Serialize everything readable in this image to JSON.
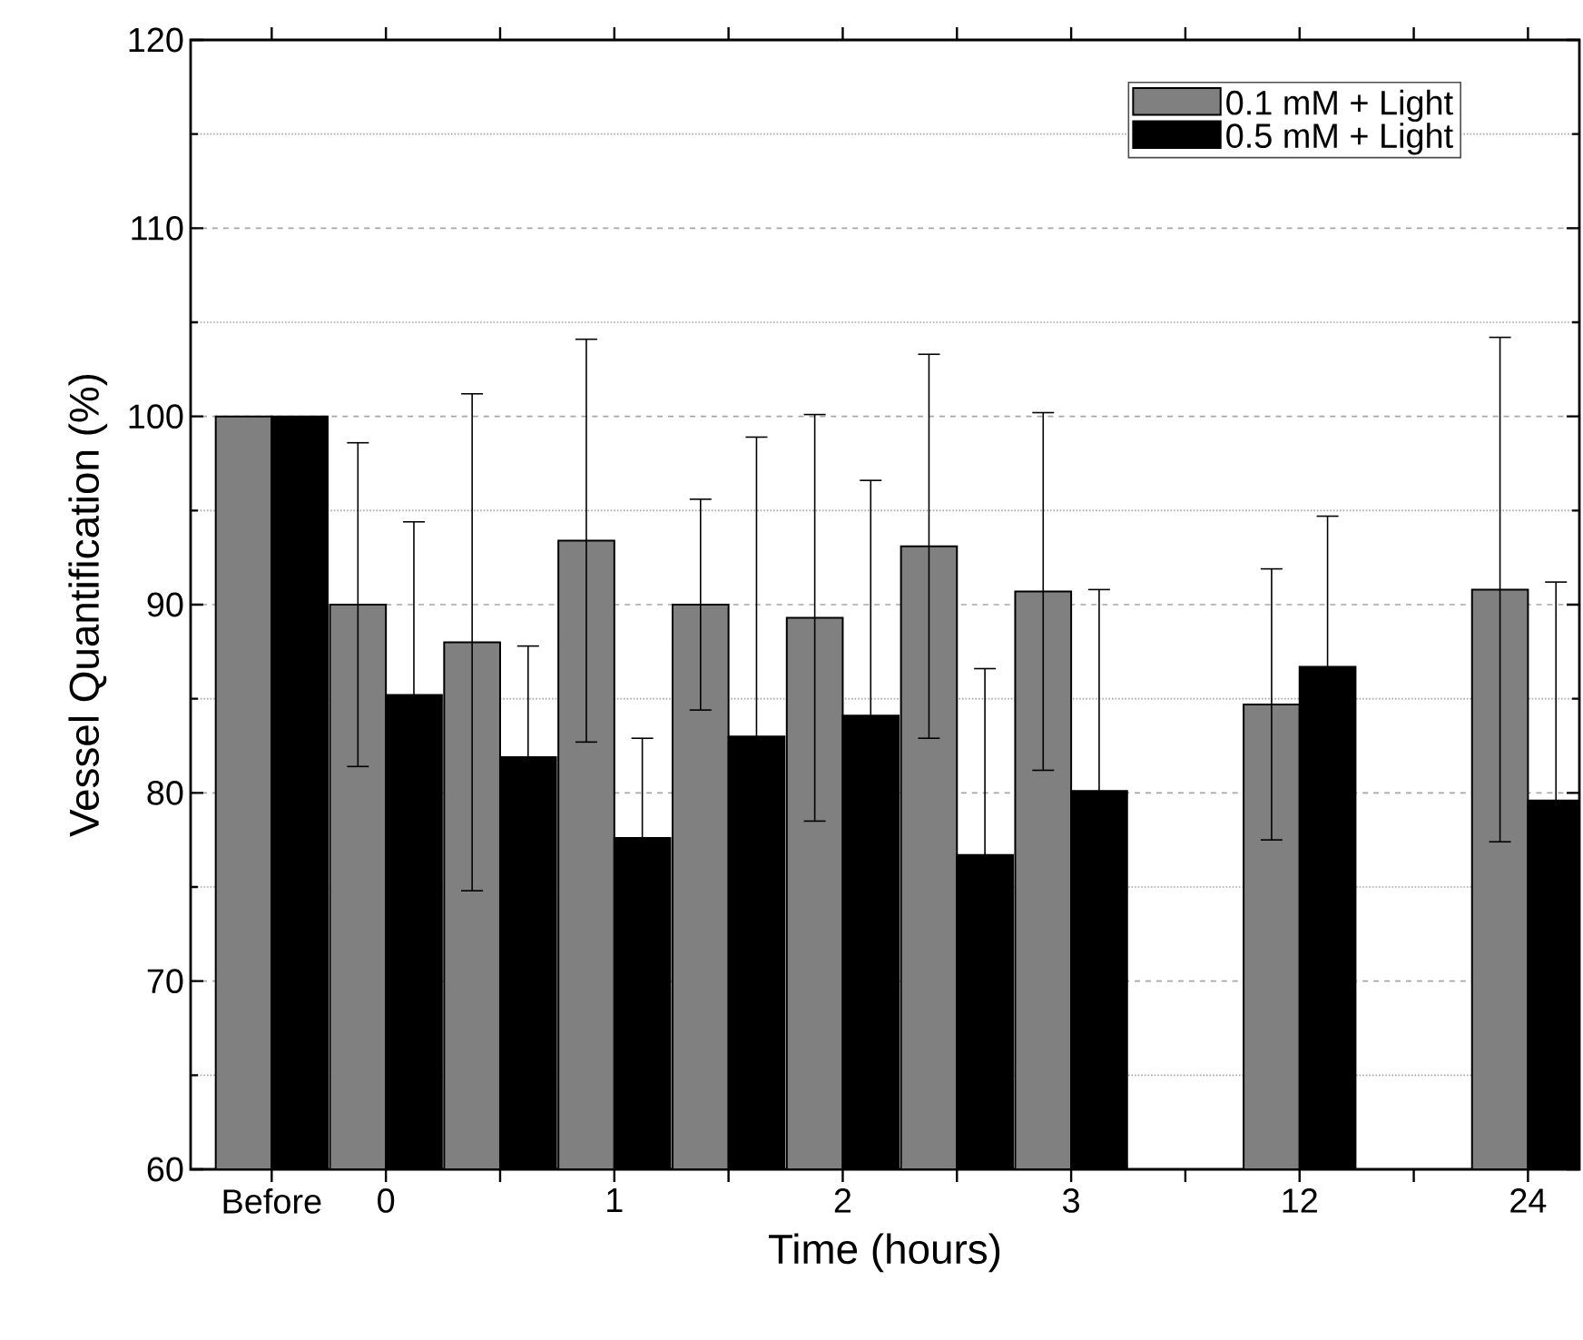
{
  "chart_data": {
    "type": "bar",
    "xlabel": "Time (hours)",
    "ylabel": "Vessel Quantification (%)",
    "categories": [
      "Before",
      "0",
      null,
      "1",
      null,
      "2",
      null,
      "3",
      null,
      "12",
      null,
      "24"
    ],
    "series": [
      {
        "name": "0.1 mM + Light",
        "color": "#808080",
        "values": [
          100,
          90.0,
          88.0,
          93.4,
          90.0,
          89.3,
          93.1,
          90.7,
          null,
          84.7,
          null,
          90.8
        ],
        "errors": [
          null,
          8.6,
          13.2,
          10.7,
          5.6,
          10.8,
          10.2,
          9.5,
          null,
          7.2,
          null,
          13.4
        ]
      },
      {
        "name": "0.5 mM + Light",
        "color": "#000000",
        "values": [
          100,
          85.2,
          81.9,
          77.6,
          83.0,
          84.1,
          76.7,
          80.1,
          null,
          86.7,
          null,
          79.6
        ],
        "errors": [
          null,
          9.2,
          5.9,
          5.3,
          15.9,
          12.5,
          9.9,
          10.7,
          null,
          8.0,
          null,
          11.6
        ]
      }
    ],
    "ylim": [
      60,
      120
    ],
    "yticks": [
      60,
      {
        "value": 65,
        "label": null
      },
      70,
      {
        "value": 75,
        "label": null
      },
      80,
      {
        "value": 85,
        "label": null
      },
      90,
      {
        "value": 95,
        "label": null
      },
      100,
      {
        "value": 105,
        "label": null
      },
      110,
      {
        "value": 115,
        "label": null
      },
      120
    ],
    "grid": "y",
    "legend": "top right"
  }
}
